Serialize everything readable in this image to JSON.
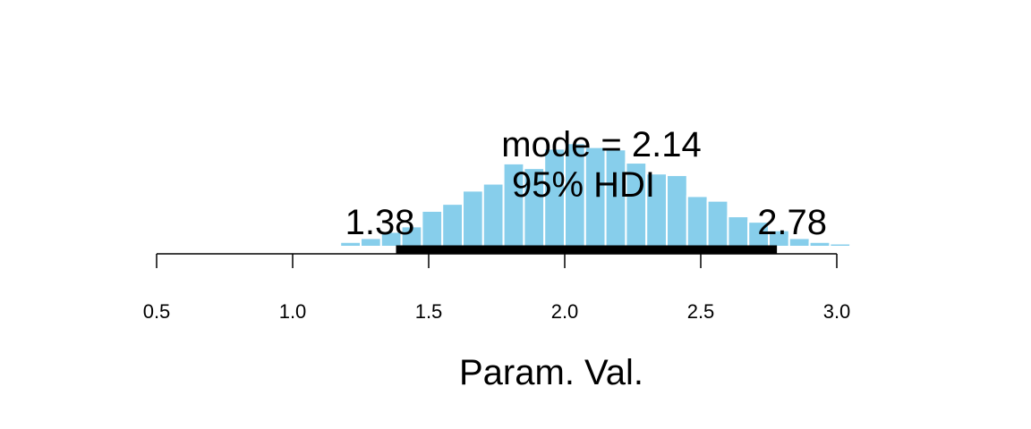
{
  "chart_data": {
    "type": "bar",
    "xlabel": "Param. Val.",
    "xlim": [
      0.5,
      3.0
    ],
    "xticks": [
      0.5,
      1.0,
      1.5,
      2.0,
      2.5,
      3.0
    ],
    "xtick_labels": [
      "0.5",
      "1.0",
      "1.5",
      "2.0",
      "2.5",
      "3.0"
    ],
    "bar_color": "#87CEEB",
    "bar_edge_color": "#ffffff",
    "bin_width": 0.075,
    "bins": [
      {
        "x0": 1.025,
        "x1": 1.1,
        "density": 0.02
      },
      {
        "x0": 1.175,
        "x1": 1.25,
        "density": 0.06
      },
      {
        "x0": 1.25,
        "x1": 1.325,
        "density": 0.11
      },
      {
        "x0": 1.325,
        "x1": 1.4,
        "density": 0.19
      },
      {
        "x0": 1.4,
        "x1": 1.475,
        "density": 0.26
      },
      {
        "x0": 1.475,
        "x1": 1.55,
        "density": 0.46
      },
      {
        "x0": 1.55,
        "x1": 1.625,
        "density": 0.55
      },
      {
        "x0": 1.625,
        "x1": 1.7,
        "density": 0.72
      },
      {
        "x0": 1.7,
        "x1": 1.775,
        "density": 0.81
      },
      {
        "x0": 1.775,
        "x1": 1.85,
        "density": 1.07
      },
      {
        "x0": 1.85,
        "x1": 1.925,
        "density": 1.01
      },
      {
        "x0": 1.925,
        "x1": 2.0,
        "density": 1.26
      },
      {
        "x0": 2.0,
        "x1": 2.075,
        "density": 1.33
      },
      {
        "x0": 2.075,
        "x1": 2.15,
        "density": 1.28
      },
      {
        "x0": 2.15,
        "x1": 2.225,
        "density": 1.25
      },
      {
        "x0": 2.225,
        "x1": 2.3,
        "density": 1.08
      },
      {
        "x0": 2.3,
        "x1": 2.375,
        "density": 0.94
      },
      {
        "x0": 2.375,
        "x1": 2.45,
        "density": 0.92
      },
      {
        "x0": 2.45,
        "x1": 2.525,
        "density": 0.65
      },
      {
        "x0": 2.525,
        "x1": 2.6,
        "density": 0.59
      },
      {
        "x0": 2.6,
        "x1": 2.675,
        "density": 0.39
      },
      {
        "x0": 2.675,
        "x1": 2.75,
        "density": 0.32
      },
      {
        "x0": 2.75,
        "x1": 2.825,
        "density": 0.21
      },
      {
        "x0": 2.825,
        "x1": 2.9,
        "density": 0.11
      },
      {
        "x0": 2.9,
        "x1": 2.975,
        "density": 0.06
      },
      {
        "x0": 2.975,
        "x1": 3.05,
        "density": 0.04
      },
      {
        "x0": 3.05,
        "x1": 3.125,
        "density": 0.01
      },
      {
        "x0": 3.125,
        "x1": 3.2,
        "density": 0.0
      }
    ],
    "mode": 2.14,
    "hdi": {
      "low": 1.38,
      "high": 2.78
    },
    "annotations": {
      "mode_text": "mode = 2.14",
      "hdi_text": "95% HDI",
      "hdi_low_label": "1.38",
      "hdi_high_label": "2.78"
    }
  }
}
